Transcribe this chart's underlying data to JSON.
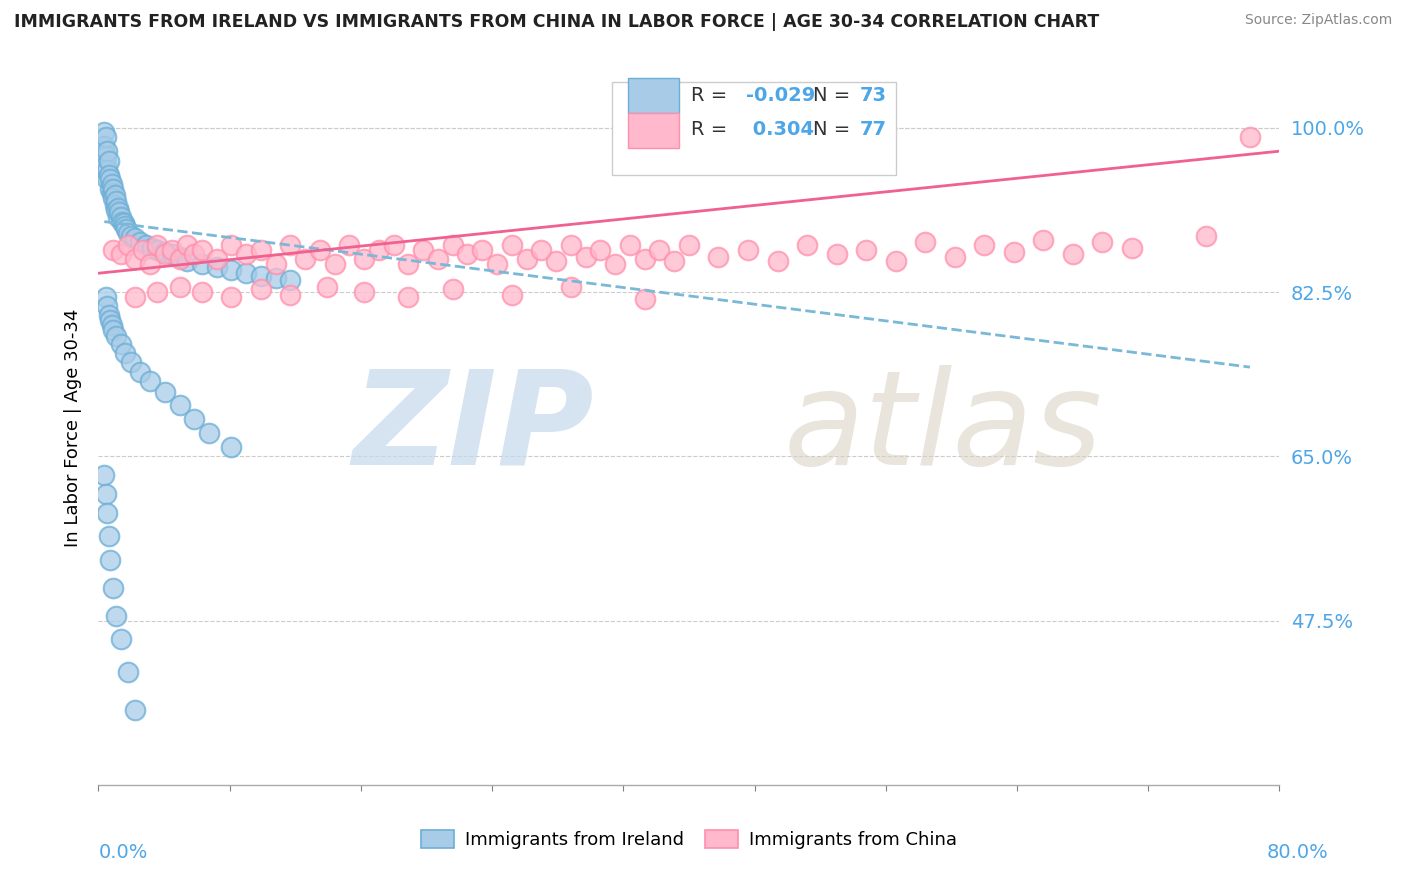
{
  "title": "IMMIGRANTS FROM IRELAND VS IMMIGRANTS FROM CHINA IN LABOR FORCE | AGE 30-34 CORRELATION CHART",
  "source": "Source: ZipAtlas.com",
  "ylabel": "In Labor Force | Age 30-34",
  "x_min": 0.0,
  "x_max": 0.8,
  "y_min": 0.3,
  "y_max": 1.06,
  "R_ireland": -0.029,
  "N_ireland": 73,
  "R_china": 0.304,
  "N_china": 77,
  "color_ireland_fill": "#a8cce8",
  "color_ireland_edge": "#6baed6",
  "color_china_fill": "#ffb8cc",
  "color_china_edge": "#ff8fab",
  "color_ireland_line": "#7ab8d8",
  "color_china_line": "#f06090",
  "watermark_zip": "ZIP",
  "watermark_atlas": "atlas",
  "watermark_color": "#d0e4f0",
  "y_tick_positions": [
    1.0,
    0.825,
    0.65,
    0.475
  ],
  "y_tick_labels": [
    "100.0%",
    "82.5%",
    "65.0%",
    "47.5%"
  ],
  "ireland_x": [
    0.004,
    0.004,
    0.005,
    0.005,
    0.005,
    0.006,
    0.006,
    0.006,
    0.007,
    0.007,
    0.008,
    0.008,
    0.009,
    0.009,
    0.01,
    0.01,
    0.011,
    0.011,
    0.012,
    0.012,
    0.013,
    0.013,
    0.014,
    0.015,
    0.016,
    0.017,
    0.018,
    0.019,
    0.02,
    0.022,
    0.025,
    0.028,
    0.032,
    0.036,
    0.04,
    0.045,
    0.05,
    0.055,
    0.06,
    0.07,
    0.08,
    0.09,
    0.1,
    0.11,
    0.12,
    0.13,
    0.005,
    0.006,
    0.007,
    0.008,
    0.009,
    0.01,
    0.012,
    0.015,
    0.018,
    0.022,
    0.028,
    0.035,
    0.045,
    0.055,
    0.065,
    0.075,
    0.09,
    0.004,
    0.005,
    0.006,
    0.007,
    0.008,
    0.01,
    0.012,
    0.015,
    0.02,
    0.025
  ],
  "ireland_y": [
    0.995,
    0.98,
    0.97,
    0.99,
    0.96,
    0.975,
    0.955,
    0.945,
    0.965,
    0.95,
    0.945,
    0.935,
    0.94,
    0.93,
    0.935,
    0.925,
    0.928,
    0.918,
    0.922,
    0.912,
    0.915,
    0.905,
    0.91,
    0.905,
    0.9,
    0.898,
    0.895,
    0.892,
    0.888,
    0.885,
    0.882,
    0.878,
    0.875,
    0.872,
    0.87,
    0.868,
    0.865,
    0.862,
    0.858,
    0.855,
    0.852,
    0.848,
    0.845,
    0.842,
    0.84,
    0.838,
    0.82,
    0.81,
    0.8,
    0.795,
    0.79,
    0.785,
    0.778,
    0.77,
    0.76,
    0.75,
    0.74,
    0.73,
    0.718,
    0.705,
    0.69,
    0.675,
    0.66,
    0.63,
    0.61,
    0.59,
    0.565,
    0.54,
    0.51,
    0.48,
    0.455,
    0.42,
    0.38
  ],
  "china_x": [
    0.01,
    0.015,
    0.02,
    0.025,
    0.03,
    0.035,
    0.04,
    0.045,
    0.05,
    0.055,
    0.06,
    0.065,
    0.07,
    0.08,
    0.09,
    0.1,
    0.11,
    0.12,
    0.13,
    0.14,
    0.15,
    0.16,
    0.17,
    0.18,
    0.19,
    0.2,
    0.21,
    0.22,
    0.23,
    0.24,
    0.25,
    0.26,
    0.27,
    0.28,
    0.29,
    0.3,
    0.31,
    0.32,
    0.33,
    0.34,
    0.35,
    0.36,
    0.37,
    0.38,
    0.39,
    0.4,
    0.42,
    0.44,
    0.46,
    0.48,
    0.5,
    0.52,
    0.54,
    0.56,
    0.58,
    0.6,
    0.62,
    0.64,
    0.66,
    0.68,
    0.7,
    0.75,
    0.78,
    0.025,
    0.04,
    0.055,
    0.07,
    0.09,
    0.11,
    0.13,
    0.155,
    0.18,
    0.21,
    0.24,
    0.28,
    0.32,
    0.37
  ],
  "china_y": [
    0.87,
    0.865,
    0.875,
    0.86,
    0.87,
    0.855,
    0.875,
    0.865,
    0.87,
    0.86,
    0.875,
    0.865,
    0.87,
    0.86,
    0.875,
    0.865,
    0.87,
    0.855,
    0.875,
    0.86,
    0.87,
    0.855,
    0.875,
    0.86,
    0.87,
    0.875,
    0.855,
    0.87,
    0.86,
    0.875,
    0.865,
    0.87,
    0.855,
    0.875,
    0.86,
    0.87,
    0.858,
    0.875,
    0.862,
    0.87,
    0.855,
    0.875,
    0.86,
    0.87,
    0.858,
    0.875,
    0.862,
    0.87,
    0.858,
    0.875,
    0.865,
    0.87,
    0.858,
    0.878,
    0.862,
    0.875,
    0.868,
    0.88,
    0.865,
    0.878,
    0.872,
    0.885,
    0.99,
    0.82,
    0.825,
    0.83,
    0.825,
    0.82,
    0.828,
    0.822,
    0.83,
    0.825,
    0.82,
    0.828,
    0.822,
    0.83,
    0.818
  ],
  "ireland_line_x": [
    0.004,
    0.78
  ],
  "ireland_line_y": [
    0.9,
    0.745
  ],
  "china_line_x": [
    0.0,
    0.8
  ],
  "china_line_y": [
    0.845,
    0.975
  ]
}
